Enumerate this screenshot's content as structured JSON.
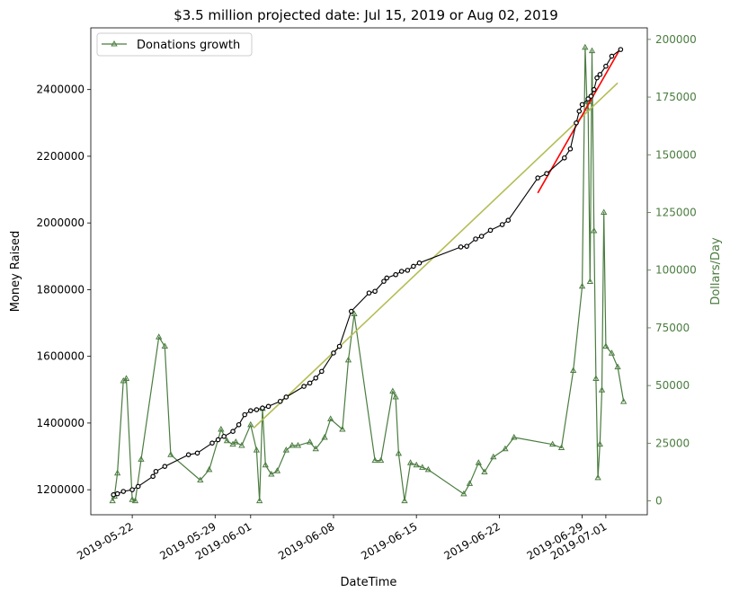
{
  "chart_data": {
    "type": "line",
    "title": "$3.5 million projected date: Jul 15, 2019 or Aug 02, 2019",
    "xlabel": "DateTime",
    "ylabel_left": "Money Raised",
    "ylabel_right": "Dollars/Day",
    "x_ticks": [
      "2019-05-22",
      "2019-05-29",
      "2019-06-01",
      "2019-06-08",
      "2019-06-15",
      "2019-06-22",
      "2019-06-29",
      "2019-07-01"
    ],
    "x_range": [
      "2019-05-18T12:00",
      "2019-07-04T12:00"
    ],
    "y_left_ticks": [
      1200000,
      1400000,
      1600000,
      1800000,
      2000000,
      2200000,
      2400000
    ],
    "y_left_range": [
      1125000,
      2585000
    ],
    "y_right_ticks": [
      0,
      25000,
      50000,
      75000,
      100000,
      125000,
      150000,
      175000,
      200000
    ],
    "y_right_range": [
      -6000,
      205000
    ],
    "legend": {
      "position": "top-left",
      "entries": [
        "Donations growth"
      ]
    },
    "colors": {
      "money": "#000000",
      "donations": "#4a7c3f",
      "trend_long": "#b5bd55",
      "trend_short": "#ff0000",
      "right_axis": "#4a7c3f"
    },
    "series": [
      {
        "name": "",
        "axis": "left",
        "points": [
          [
            "2019-05-20T10:00",
            1185000
          ],
          [
            "2019-05-20T18:00",
            1188000
          ],
          [
            "2019-05-21T06:00",
            1195000
          ],
          [
            "2019-05-22T00:00",
            1200000
          ],
          [
            "2019-05-22T12:00",
            1210000
          ],
          [
            "2019-05-23T18:00",
            1240000
          ],
          [
            "2019-05-24T00:00",
            1255000
          ],
          [
            "2019-05-24T18:00",
            1270000
          ],
          [
            "2019-05-26T18:00",
            1305000
          ],
          [
            "2019-05-27T12:00",
            1310000
          ],
          [
            "2019-05-28T18:00",
            1340000
          ],
          [
            "2019-05-29T06:00",
            1350000
          ],
          [
            "2019-05-29T18:00",
            1360000
          ],
          [
            "2019-05-30T12:00",
            1375000
          ],
          [
            "2019-05-31T00:00",
            1395000
          ],
          [
            "2019-05-31T12:00",
            1425000
          ],
          [
            "2019-06-01T00:00",
            1437000
          ],
          [
            "2019-06-01T12:00",
            1440000
          ],
          [
            "2019-06-02T00:00",
            1445000
          ],
          [
            "2019-06-02T12:00",
            1450000
          ],
          [
            "2019-06-03T12:00",
            1465000
          ],
          [
            "2019-06-04T00:00",
            1478000
          ],
          [
            "2019-06-05T12:00",
            1510000
          ],
          [
            "2019-06-06T00:00",
            1520000
          ],
          [
            "2019-06-06T12:00",
            1535000
          ],
          [
            "2019-06-07T00:00",
            1555000
          ],
          [
            "2019-06-08T00:00",
            1610000
          ],
          [
            "2019-06-08T12:00",
            1630000
          ],
          [
            "2019-06-09T12:00",
            1735000
          ],
          [
            "2019-06-11T00:00",
            1790000
          ],
          [
            "2019-06-11T12:00",
            1795000
          ],
          [
            "2019-06-12T06:00",
            1825000
          ],
          [
            "2019-06-12T12:00",
            1835000
          ],
          [
            "2019-06-13T06:00",
            1845000
          ],
          [
            "2019-06-13T18:00",
            1855000
          ],
          [
            "2019-06-14T06:00",
            1858000
          ],
          [
            "2019-06-14T18:00",
            1870000
          ],
          [
            "2019-06-15T06:00",
            1880000
          ],
          [
            "2019-06-18T18:00",
            1928000
          ],
          [
            "2019-06-19T06:00",
            1930000
          ],
          [
            "2019-06-20T00:00",
            1952000
          ],
          [
            "2019-06-20T12:00",
            1960000
          ],
          [
            "2019-06-21T06:00",
            1978000
          ],
          [
            "2019-06-22T06:00",
            1995000
          ],
          [
            "2019-06-22T18:00",
            2008000
          ],
          [
            "2019-06-25T06:00",
            2135000
          ],
          [
            "2019-06-26T00:00",
            2148000
          ],
          [
            "2019-06-27T12:00",
            2195000
          ],
          [
            "2019-06-28T00:00",
            2222000
          ],
          [
            "2019-06-28T12:00",
            2300000
          ],
          [
            "2019-06-28T18:00",
            2335000
          ],
          [
            "2019-06-29T00:00",
            2355000
          ],
          [
            "2019-06-29T12:00",
            2372000
          ],
          [
            "2019-06-29T18:00",
            2380000
          ],
          [
            "2019-06-30T00:00",
            2400000
          ],
          [
            "2019-06-30T06:00",
            2435000
          ],
          [
            "2019-06-30T12:00",
            2445000
          ],
          [
            "2019-07-01T00:00",
            2470000
          ],
          [
            "2019-07-01T12:00",
            2500000
          ],
          [
            "2019-07-02T06:00",
            2520000
          ]
        ]
      },
      {
        "name": "Donations growth",
        "axis": "right",
        "points": [
          [
            "2019-05-20T08:00",
            0
          ],
          [
            "2019-05-20T12:00",
            2000
          ],
          [
            "2019-05-20T18:00",
            12000
          ],
          [
            "2019-05-21T06:00",
            52000
          ],
          [
            "2019-05-21T12:00",
            53000
          ],
          [
            "2019-05-22T00:00",
            500
          ],
          [
            "2019-05-22T06:00",
            0
          ],
          [
            "2019-05-22T18:00",
            18000
          ],
          [
            "2019-05-24T06:00",
            71000
          ],
          [
            "2019-05-24T18:00",
            67000
          ],
          [
            "2019-05-25T06:00",
            20000
          ],
          [
            "2019-05-27T18:00",
            9000
          ],
          [
            "2019-05-28T12:00",
            13500
          ],
          [
            "2019-05-29T12:00",
            31000
          ],
          [
            "2019-05-30T00:00",
            26000
          ],
          [
            "2019-05-30T12:00",
            24500
          ],
          [
            "2019-05-30T18:00",
            25500
          ],
          [
            "2019-05-31T06:00",
            24000
          ],
          [
            "2019-06-01T00:00",
            33000
          ],
          [
            "2019-06-01T12:00",
            22000
          ],
          [
            "2019-06-01T18:00",
            0
          ],
          [
            "2019-06-02T00:00",
            40000
          ],
          [
            "2019-06-02T06:00",
            15500
          ],
          [
            "2019-06-02T18:00",
            11500
          ],
          [
            "2019-06-03T06:00",
            13000
          ],
          [
            "2019-06-04T00:00",
            22000
          ],
          [
            "2019-06-04T12:00",
            24000
          ],
          [
            "2019-06-05T00:00",
            24000
          ],
          [
            "2019-06-06T00:00",
            25500
          ],
          [
            "2019-06-06T12:00",
            22500
          ],
          [
            "2019-06-07T06:00",
            27500
          ],
          [
            "2019-06-07T18:00",
            35500
          ],
          [
            "2019-06-08T18:00",
            31000
          ],
          [
            "2019-06-09T06:00",
            61000
          ],
          [
            "2019-06-09T18:00",
            81000
          ],
          [
            "2019-06-11T12:00",
            17500
          ],
          [
            "2019-06-12T00:00",
            17500
          ],
          [
            "2019-06-13T00:00",
            47500
          ],
          [
            "2019-06-13T06:00",
            45000
          ],
          [
            "2019-06-13T12:00",
            20500
          ],
          [
            "2019-06-14T00:00",
            0
          ],
          [
            "2019-06-14T12:00",
            16500
          ],
          [
            "2019-06-15T00:00",
            15500
          ],
          [
            "2019-06-15T12:00",
            14500
          ],
          [
            "2019-06-16T00:00",
            13500
          ],
          [
            "2019-06-19T00:00",
            3000
          ],
          [
            "2019-06-19T12:00",
            7500
          ],
          [
            "2019-06-20T06:00",
            16500
          ],
          [
            "2019-06-20T18:00",
            12500
          ],
          [
            "2019-06-21T12:00",
            19000
          ],
          [
            "2019-06-22T12:00",
            22500
          ],
          [
            "2019-06-23T06:00",
            27500
          ],
          [
            "2019-06-26T12:00",
            24500
          ],
          [
            "2019-06-27T06:00",
            23000
          ],
          [
            "2019-06-28T06:00",
            56500
          ],
          [
            "2019-06-29T00:00",
            93000
          ],
          [
            "2019-06-29T06:00",
            196500
          ],
          [
            "2019-06-29T10:00",
            170000
          ],
          [
            "2019-06-29T12:00",
            173000
          ],
          [
            "2019-06-29T16:00",
            95000
          ],
          [
            "2019-06-29T20:00",
            195000
          ],
          [
            "2019-06-30T00:00",
            117000
          ],
          [
            "2019-06-30T04:00",
            53000
          ],
          [
            "2019-06-30T08:00",
            10000
          ],
          [
            "2019-06-30T12:00",
            24500
          ],
          [
            "2019-06-30T16:00",
            48000
          ],
          [
            "2019-06-30T20:00",
            125000
          ],
          [
            "2019-07-01T00:00",
            67000
          ],
          [
            "2019-07-01T12:00",
            64000
          ],
          [
            "2019-07-02T00:00",
            58000
          ],
          [
            "2019-07-02T12:00",
            43000
          ]
        ]
      },
      {
        "name": "",
        "axis": "left",
        "points": [
          [
            "2019-06-01T06:00",
            1385000
          ],
          [
            "2019-07-02T00:00",
            2420000
          ]
        ]
      },
      {
        "name": "",
        "axis": "left",
        "points": [
          [
            "2019-06-25T06:00",
            2090000
          ],
          [
            "2019-07-02T06:00",
            2525000
          ]
        ]
      }
    ]
  }
}
